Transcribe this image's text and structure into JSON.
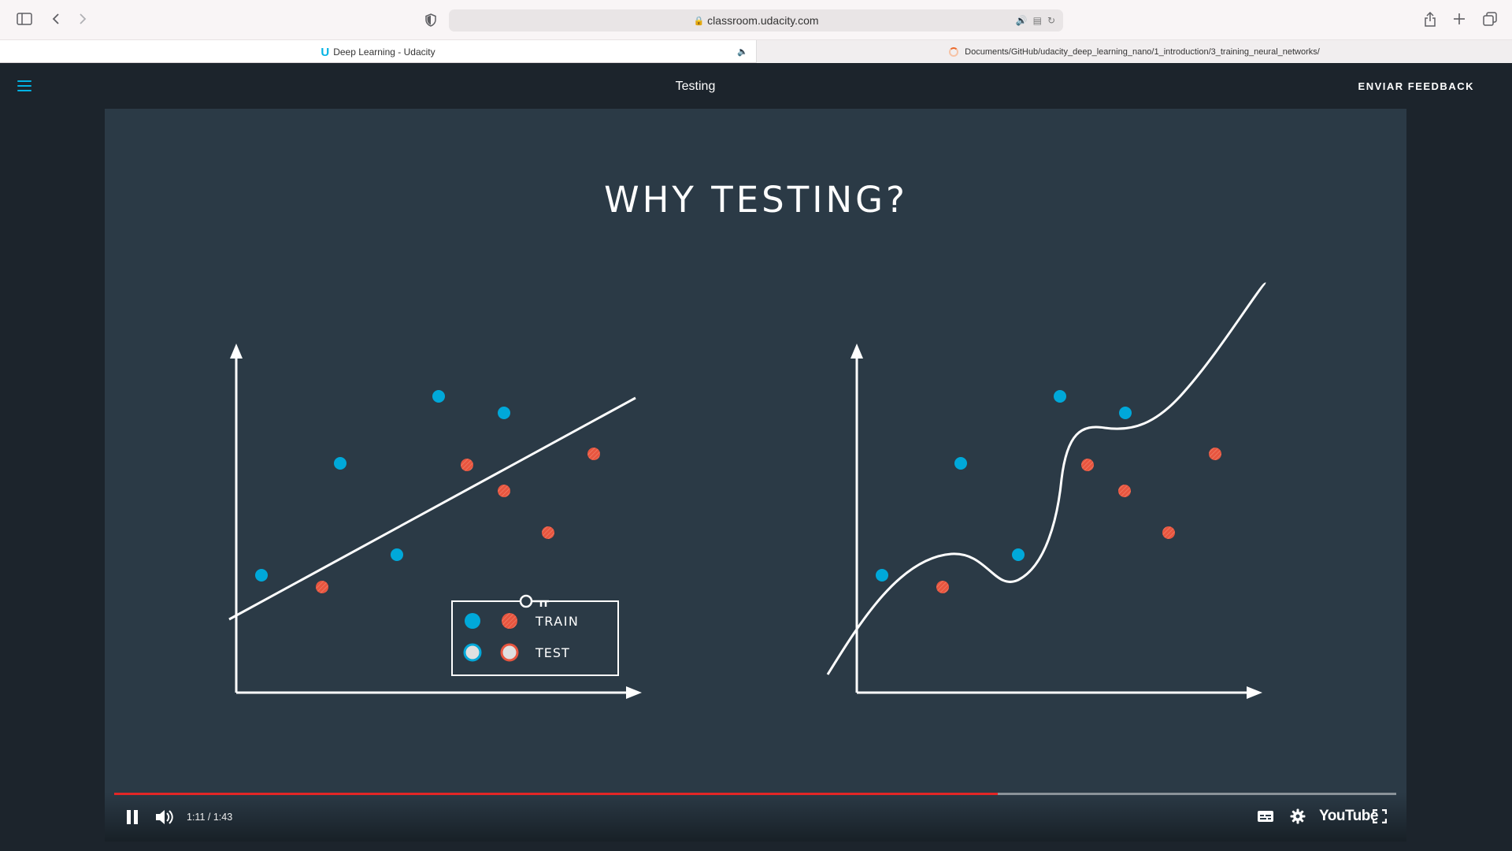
{
  "browser": {
    "url": "classroom.udacity.com",
    "tabs": [
      {
        "label": "Deep Learning - Udacity",
        "active": true
      },
      {
        "label": "Documents/GitHub/udacity_deep_learning_nano/1_introduction/3_training_neural_networks/",
        "active": false
      }
    ]
  },
  "header": {
    "title": "Testing",
    "feedback_label": "ENVIAR FEEDBACK"
  },
  "slide": {
    "title": "WHY TESTING?",
    "legend": {
      "train": "TRAIN",
      "test": "TEST"
    },
    "colors": {
      "blue": "#00a8d9",
      "red": "#e8553f",
      "background": "#2b3a46"
    }
  },
  "player": {
    "time": "1:11 / 1:43",
    "progress": 0.6893,
    "brand": "YouTube",
    "icons": [
      "pause-icon",
      "volume-icon",
      "subtitles-icon",
      "settings-icon",
      "fullscreen-icon"
    ]
  }
}
